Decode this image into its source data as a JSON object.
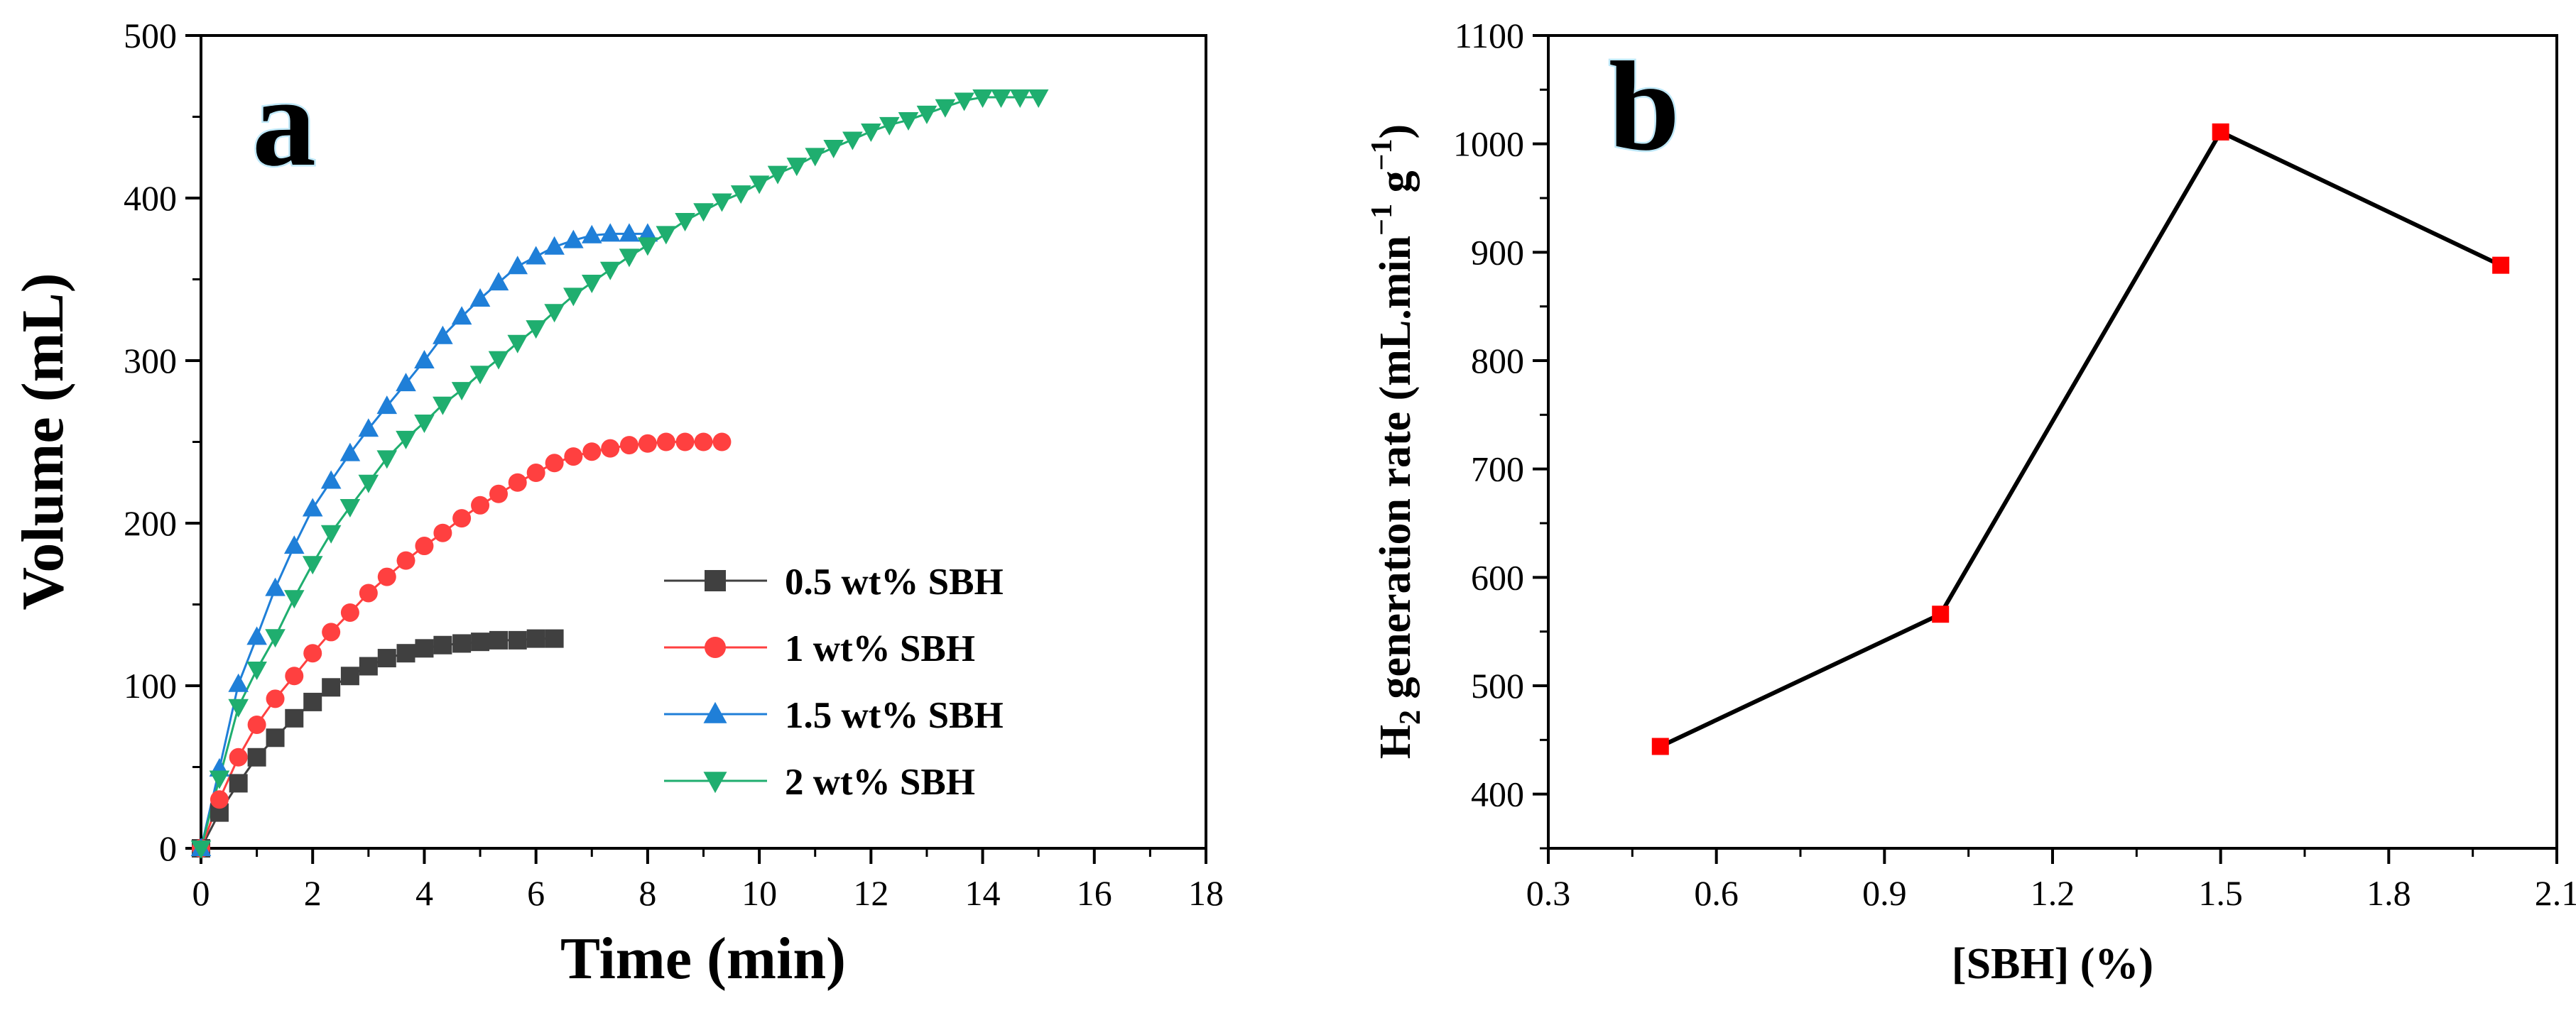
{
  "chart_data": [
    {
      "type": "line",
      "panel_label": "a",
      "xlabel": "Time (min)",
      "ylabel": "Volume (mL)",
      "xlim": [
        0,
        18
      ],
      "ylim": [
        0,
        500
      ],
      "xticks": [
        "0",
        "2",
        "4",
        "6",
        "8",
        "10",
        "12",
        "14",
        "16",
        "18"
      ],
      "yticks": [
        "0",
        "100",
        "200",
        "300",
        "400",
        "500"
      ],
      "legend_position": "bottom-right",
      "grid": false,
      "series": [
        {
          "name": "0.5 wt% SBH",
          "color": "#404040",
          "marker": "square",
          "x": [
            0,
            0.33,
            0.67,
            1.0,
            1.33,
            1.67,
            2.0,
            2.33,
            2.67,
            3.0,
            3.33,
            3.67,
            4.0,
            4.33,
            4.67,
            5.0,
            5.33,
            5.67,
            6.0,
            6.33
          ],
          "y": [
            0,
            22,
            40,
            56,
            68,
            80,
            90,
            99,
            106,
            112,
            117,
            120,
            123,
            125,
            126,
            127,
            128,
            128,
            129,
            129
          ]
        },
        {
          "name": "1 wt% SBH",
          "color": "#ff4040",
          "marker": "circle",
          "x": [
            0,
            0.33,
            0.67,
            1.0,
            1.33,
            1.67,
            2.0,
            2.33,
            2.67,
            3.0,
            3.33,
            3.67,
            4.0,
            4.33,
            4.67,
            5.0,
            5.33,
            5.67,
            6.0,
            6.33,
            6.67,
            7.0,
            7.33,
            7.67,
            8.0,
            8.33,
            8.67,
            9.0,
            9.33
          ],
          "y": [
            0,
            30,
            56,
            76,
            92,
            106,
            120,
            133,
            145,
            157,
            167,
            177,
            186,
            194,
            203,
            211,
            218,
            225,
            231,
            237,
            241,
            244,
            246,
            248,
            249,
            250,
            250,
            250,
            250
          ]
        },
        {
          "name": "1.5 wt% SBH",
          "color": "#1f7fd8",
          "marker": "triangle-up",
          "x": [
            0,
            0.33,
            0.67,
            1.0,
            1.33,
            1.67,
            2.0,
            2.33,
            2.67,
            3.0,
            3.33,
            3.67,
            4.0,
            4.33,
            4.67,
            5.0,
            5.33,
            5.67,
            6.0,
            6.33,
            6.67,
            7.0,
            7.33,
            7.67,
            8.0
          ],
          "y": [
            0,
            49,
            101,
            130,
            160,
            186,
            209,
            226,
            243,
            258,
            272,
            286,
            300,
            315,
            327,
            338,
            348,
            358,
            364,
            370,
            374,
            377,
            378,
            378,
            378
          ]
        },
        {
          "name": "2 wt% SBH",
          "color": "#1fae6f",
          "marker": "triangle-down",
          "x": [
            0,
            0.33,
            0.67,
            1.0,
            1.33,
            1.67,
            2.0,
            2.33,
            2.67,
            3.0,
            3.33,
            3.67,
            4.0,
            4.33,
            4.67,
            5.0,
            5.33,
            5.67,
            6.0,
            6.33,
            6.67,
            7.0,
            7.33,
            7.67,
            8.0,
            8.33,
            8.67,
            9.0,
            9.33,
            9.67,
            10.0,
            10.33,
            10.67,
            11.0,
            11.33,
            11.67,
            12.0,
            12.33,
            12.67,
            13.0,
            13.33,
            13.67,
            14.0,
            14.33,
            14.67,
            15.0
          ],
          "y": [
            0,
            43,
            87,
            110,
            130,
            154,
            175,
            194,
            210,
            225,
            240,
            252,
            262,
            273,
            282,
            292,
            301,
            311,
            320,
            330,
            340,
            348,
            356,
            364,
            371,
            378,
            386,
            392,
            398,
            403,
            409,
            415,
            420,
            426,
            431,
            436,
            441,
            445,
            448,
            452,
            456,
            460,
            462,
            462,
            462,
            462
          ]
        }
      ]
    },
    {
      "type": "line",
      "panel_label": "b",
      "xlabel": "[SBH] (%)",
      "ylabel_parts": {
        "h": "H",
        "sub2": "2",
        "main": " generation rate (mL.min",
        "sup1": "−1",
        "g": " g",
        "sup2": "−1",
        "close": ")"
      },
      "xlim": [
        0.3,
        2.1
      ],
      "ylim": [
        350,
        1100
      ],
      "xticks": [
        "0.3",
        "0.6",
        "0.9",
        "1.2",
        "1.5",
        "1.8",
        "2.1"
      ],
      "yticks": [
        "400",
        "500",
        "600",
        "700",
        "800",
        "900",
        "1000",
        "1100"
      ],
      "grid": false,
      "series": [
        {
          "color": "#000000",
          "marker_color": "#ff0000",
          "marker": "square",
          "x": [
            0.5,
            1.0,
            1.5,
            2.0
          ],
          "y": [
            444,
            566,
            1011,
            888
          ]
        }
      ]
    }
  ]
}
